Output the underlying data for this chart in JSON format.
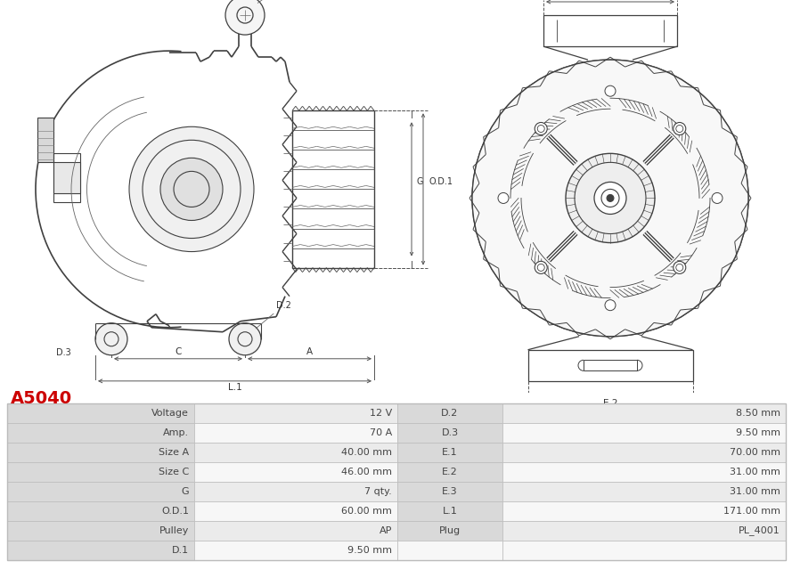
{
  "title": "A5040",
  "title_color": "#cc0000",
  "table_rows": [
    [
      "Voltage",
      "12 V",
      "D.2",
      "8.50 mm"
    ],
    [
      "Amp.",
      "70 A",
      "D.3",
      "9.50 mm"
    ],
    [
      "Size A",
      "40.00 mm",
      "E.1",
      "70.00 mm"
    ],
    [
      "Size C",
      "46.00 mm",
      "E.2",
      "31.00 mm"
    ],
    [
      "G",
      "7 qty.",
      "E.3",
      "31.00 mm"
    ],
    [
      "O.D.1",
      "60.00 mm",
      "L.1",
      "171.00 mm"
    ],
    [
      "Pulley",
      "AP",
      "Plug",
      "PL_4001"
    ],
    [
      "D.1",
      "9.50 mm",
      "",
      ""
    ]
  ],
  "bg_color": "#ffffff",
  "table_header_bg": "#d9d9d9",
  "table_row_bg1": "#ebebeb",
  "table_row_bg2": "#f7f7f7",
  "border_color": "#bbbbbb",
  "text_color": "#444444",
  "line_color": "#404040",
  "dim_color": "#555555",
  "dim_lw": 0.7,
  "body_lw": 1.0
}
